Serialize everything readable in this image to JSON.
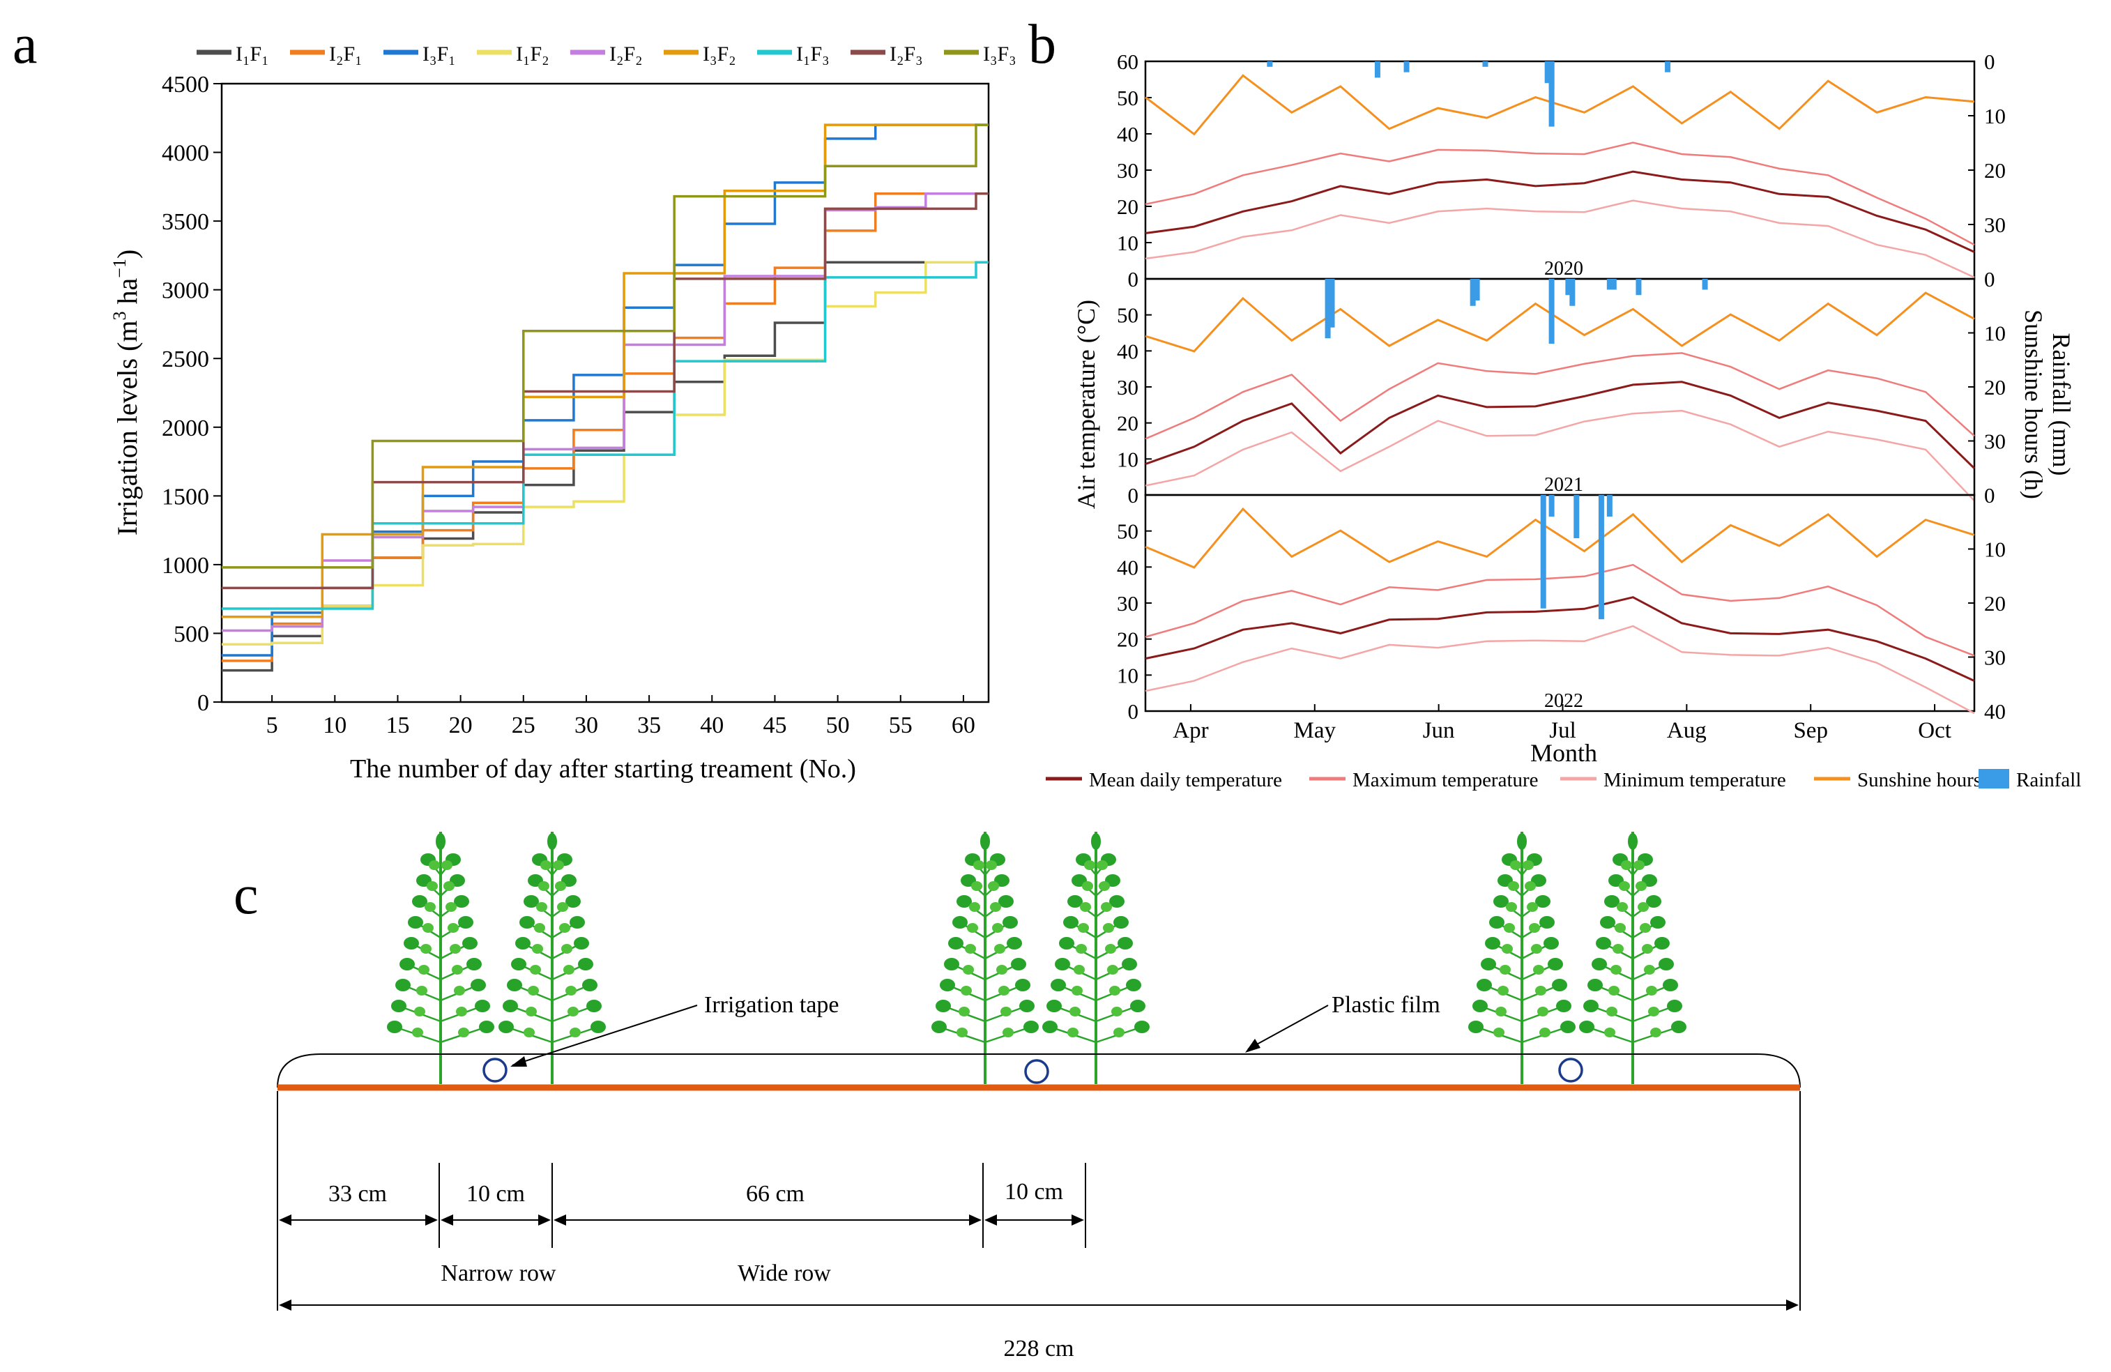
{
  "panel_labels": {
    "a": "a",
    "b": "b",
    "c": "c"
  },
  "colors": {
    "I1F1": "#4d4d4d",
    "I2F1": "#f07d1e",
    "I3F1": "#1f78d1",
    "I1F2": "#ecdf64",
    "I2F2": "#c47ee0",
    "I3F2": "#e39a0c",
    "I1F3": "#22c8cf",
    "I2F3": "#8c4a4a",
    "I3F3": "#8f9618",
    "mean_temp": "#8b1a1a",
    "max_temp": "#ef7b7b",
    "min_temp": "#f4a6a6",
    "sunshine": "#f5901e",
    "rainfall": "#3a9be6",
    "soil": "#e05a10",
    "plant": "#2aa52a",
    "axis": "#000000"
  },
  "chart_data": [
    {
      "id": "a",
      "type": "line",
      "step": true,
      "title": "",
      "xlabel": "The number of day after starting treament (No.)",
      "ylabel_main": "Irrigation levels (m",
      "ylabel_sup1": "3",
      "ylabel_mid": " ha",
      "ylabel_sup2": "−1",
      "ylabel_end": ")",
      "xlim": [
        1,
        62
      ],
      "ylim": [
        0,
        4500
      ],
      "xticks": [
        5,
        10,
        15,
        20,
        25,
        30,
        35,
        40,
        45,
        50,
        55,
        60
      ],
      "yticks": [
        0,
        500,
        1000,
        1500,
        2000,
        2500,
        3000,
        3500,
        4000,
        4500
      ],
      "legend_position": "top",
      "series": [
        {
          "key": "I1F1",
          "name": "I₁F₁",
          "x": [
            1,
            5,
            9,
            13,
            17,
            21,
            25,
            29,
            33,
            37,
            41,
            45,
            49,
            53,
            57,
            61
          ],
          "values": [
            230,
            480,
            700,
            1050,
            1190,
            1380,
            1580,
            1830,
            2110,
            2330,
            2520,
            2760,
            3200,
            3200,
            3200,
            3200
          ]
        },
        {
          "key": "I2F1",
          "name": "I₂F₁",
          "x": [
            1,
            5,
            9,
            13,
            17,
            21,
            25,
            29,
            33,
            37,
            41,
            45,
            49,
            53,
            57,
            61
          ],
          "values": [
            300,
            570,
            830,
            1050,
            1250,
            1450,
            1700,
            1980,
            2390,
            2650,
            2900,
            3160,
            3430,
            3700,
            3700,
            3700
          ]
        },
        {
          "key": "I3F1",
          "name": "I₃F₁",
          "x": [
            1,
            5,
            9,
            13,
            17,
            21,
            25,
            29,
            33,
            37,
            41,
            45,
            49,
            53,
            57,
            61
          ],
          "values": [
            340,
            650,
            830,
            1240,
            1500,
            1750,
            2050,
            2380,
            2870,
            3180,
            3480,
            3780,
            4100,
            4200,
            4200,
            4200
          ]
        },
        {
          "key": "I1F2",
          "name": "I₁F₂",
          "x": [
            1,
            5,
            9,
            13,
            17,
            21,
            25,
            29,
            33,
            37,
            41,
            45,
            49,
            53,
            57,
            61
          ],
          "values": [
            420,
            430,
            700,
            850,
            1140,
            1150,
            1420,
            1460,
            1800,
            2090,
            2490,
            2490,
            2880,
            2980,
            3200,
            3200
          ]
        },
        {
          "key": "I2F2",
          "name": "I₂F₂",
          "x": [
            1,
            5,
            9,
            13,
            17,
            21,
            25,
            29,
            33,
            37,
            41,
            45,
            49,
            53,
            57,
            61
          ],
          "values": [
            520,
            550,
            1030,
            1200,
            1390,
            1420,
            1840,
            1850,
            2600,
            2600,
            3100,
            3100,
            3580,
            3600,
            3700,
            3700
          ]
        },
        {
          "key": "I3F2",
          "name": "I₃F₂",
          "x": [
            1,
            5,
            9,
            13,
            17,
            21,
            25,
            29,
            33,
            37,
            41,
            45,
            49,
            53,
            57,
            61
          ],
          "values": [
            620,
            620,
            1220,
            1220,
            1710,
            1710,
            2220,
            2220,
            3120,
            3120,
            3720,
            3720,
            4200,
            4200,
            4200,
            4200
          ]
        },
        {
          "key": "I1F3",
          "name": "I₁F₃",
          "x": [
            1,
            5,
            9,
            13,
            17,
            21,
            25,
            29,
            33,
            37,
            41,
            45,
            49,
            53,
            57,
            61
          ],
          "values": [
            680,
            680,
            680,
            1300,
            1300,
            1300,
            1800,
            1800,
            1800,
            2480,
            2480,
            2480,
            3090,
            3090,
            3090,
            3200
          ]
        },
        {
          "key": "I2F3",
          "name": "I₂F₃",
          "x": [
            1,
            5,
            9,
            13,
            17,
            21,
            25,
            29,
            33,
            37,
            41,
            45,
            49,
            53,
            57,
            61
          ],
          "values": [
            830,
            830,
            830,
            1600,
            1600,
            1600,
            2260,
            2260,
            2260,
            3080,
            3080,
            3080,
            3590,
            3590,
            3590,
            3700
          ]
        },
        {
          "key": "I3F3",
          "name": "I₃F₃",
          "x": [
            1,
            5,
            9,
            13,
            17,
            21,
            25,
            29,
            33,
            37,
            41,
            45,
            49,
            53,
            57,
            61
          ],
          "values": [
            980,
            980,
            980,
            1900,
            1900,
            1900,
            2700,
            2700,
            2700,
            3680,
            3680,
            3680,
            3900,
            3900,
            3900,
            4200
          ]
        }
      ]
    },
    {
      "id": "b",
      "type": "line+bar",
      "title": "",
      "xlabel": "Month",
      "ylabel_left": "Air temperature (°C)",
      "ylabel_right_1": "Rainfall (mm)",
      "ylabel_right_2": "Sunshine hours (h)",
      "months": [
        "Apr",
        "May",
        "Jun",
        "Jul",
        "Aug",
        "Sep",
        "Oct"
      ],
      "left_ticks": [
        0,
        10,
        20,
        30,
        40,
        50,
        60
      ],
      "left_ticks_lower": [
        0,
        10,
        20,
        30,
        40,
        50
      ],
      "right_ticks": [
        0,
        10,
        20,
        30
      ],
      "right_ticks_bottom": [
        0,
        10,
        20,
        30,
        40
      ],
      "ylim_temp": [
        0,
        60
      ],
      "ylim_right": [
        0,
        40
      ],
      "legend": [
        "Mean daily temperature",
        "Maximum temperature",
        "Minimum temperature",
        "Sunshine hours",
        "Rainfall"
      ],
      "legend_position": "bottom",
      "subplots": [
        {
          "year": "2020",
          "mean_temp": [
            12,
            15,
            18,
            22,
            25,
            24,
            26,
            28,
            25,
            27,
            29,
            28,
            26,
            24,
            22,
            18,
            13,
            8
          ],
          "max_temp": [
            20,
            24,
            28,
            32,
            34,
            33,
            35,
            36,
            34,
            35,
            37,
            35,
            33,
            31,
            28,
            23,
            16,
            10
          ],
          "min_temp": [
            5,
            8,
            11,
            14,
            17,
            16,
            18,
            20,
            18,
            19,
            21,
            20,
            18,
            16,
            14,
            10,
            6,
            1
          ],
          "sunshine": [
            6,
            14,
            2,
            10,
            4,
            13,
            8,
            11,
            6,
            10,
            4,
            12,
            5,
            13,
            3,
            10,
            6,
            8
          ],
          "rain_day": [
            30,
            56,
            63,
            82,
            97,
            98,
            98,
            126
          ],
          "rain_mm": [
            1,
            3,
            2,
            1,
            4,
            12,
            5,
            2
          ]
        },
        {
          "year": "2021",
          "mean_temp": [
            8,
            14,
            20,
            26,
            11,
            22,
            27,
            25,
            24,
            28,
            30,
            32,
            27,
            22,
            25,
            24,
            20,
            8
          ],
          "max_temp": [
            15,
            22,
            28,
            34,
            20,
            30,
            36,
            35,
            33,
            37,
            38,
            40,
            35,
            30,
            34,
            33,
            28,
            17
          ],
          "min_temp": [
            2,
            6,
            12,
            18,
            6,
            14,
            20,
            17,
            16,
            21,
            22,
            24,
            19,
            14,
            17,
            16,
            12,
            -1
          ],
          "sunshine": [
            10,
            14,
            3,
            12,
            5,
            13,
            7,
            12,
            4,
            11,
            5,
            13,
            6,
            12,
            4,
            11,
            2,
            8
          ],
          "rain_day": [
            44,
            45,
            79,
            80,
            98,
            102,
            103,
            112,
            113,
            119,
            135
          ],
          "rain_mm": [
            11,
            9,
            5,
            4,
            12,
            3,
            5,
            2,
            2,
            3,
            2
          ]
        },
        {
          "year": "2022",
          "mean_temp": [
            14,
            18,
            22,
            25,
            21,
            26,
            25,
            28,
            27,
            29,
            31,
            25,
            21,
            22,
            22,
            20,
            14,
            9
          ],
          "max_temp": [
            20,
            25,
            30,
            34,
            29,
            35,
            33,
            37,
            36,
            38,
            40,
            33,
            30,
            32,
            34,
            30,
            20,
            16
          ],
          "min_temp": [
            5,
            9,
            13,
            18,
            14,
            19,
            17,
            20,
            19,
            20,
            23,
            17,
            15,
            16,
            17,
            14,
            6,
            0
          ],
          "sunshine": [
            9,
            14,
            2,
            12,
            6,
            13,
            8,
            12,
            4,
            11,
            3,
            13,
            5,
            10,
            3,
            12,
            4,
            8
          ],
          "rain_day": [
            96,
            98,
            104,
            110,
            112
          ],
          "rain_mm": [
            21,
            4,
            8,
            23,
            4
          ]
        }
      ]
    }
  ],
  "diagram": {
    "labels": {
      "irrigation_tape": "Irrigation tape",
      "plastic_film": "Plastic film",
      "d33": "33 cm",
      "d10a": "10 cm",
      "d66": "66 cm",
      "d10b": "10 cm",
      "narrow_row": "Narrow row",
      "wide_row": "Wide row",
      "total": "228 cm"
    }
  }
}
